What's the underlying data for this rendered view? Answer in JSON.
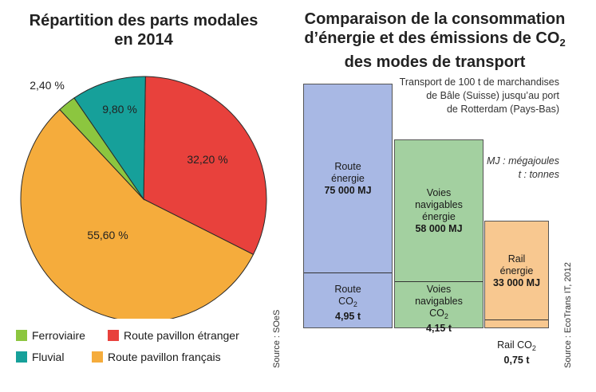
{
  "chart_data": [
    {
      "type": "pie",
      "title_line1": "Répartition des parts modales",
      "title_line2": "en 2014",
      "slices": [
        {
          "name": "Route pavillon étranger",
          "value": 32.2,
          "label": "32,20 %",
          "color": "#e8413c"
        },
        {
          "name": "Route pavillon français",
          "value": 55.6,
          "label": "55,60 %",
          "color": "#f5ac3c"
        },
        {
          "name": "Ferroviaire",
          "value": 2.4,
          "label": "2,40 %",
          "color": "#8cc63f"
        },
        {
          "name": "Fluvial",
          "value": 9.8,
          "label": "9,80 %",
          "color": "#16a09a"
        }
      ],
      "legend": [
        {
          "name": "Ferroviaire",
          "color": "#8cc63f"
        },
        {
          "name": "Route pavillon étranger",
          "color": "#e8413c"
        },
        {
          "name": "Fluvial",
          "color": "#16a09a"
        },
        {
          "name": "Route pavillon français",
          "color": "#f5ac3c"
        }
      ],
      "source": "Source : SOeS"
    },
    {
      "type": "bar",
      "title_line1": "Comparaison de la consommation",
      "title_line2_pre": "d’énergie et des émissions de CO",
      "title_line2_sub": "2",
      "title_line3": "des modes de transport",
      "subtitle_lines": [
        "Transport de 100 t de marchandises",
        "de Bâle (Suisse) jusqu’au port",
        "de Rotterdam (Pays-Bas)"
      ],
      "units_lines": [
        "MJ : mégajoules",
        "t : tonnes"
      ],
      "categories": [
        "Route",
        "Voies navigables",
        "Rail"
      ],
      "series": [
        {
          "name": "énergie",
          "unit": "MJ",
          "values": [
            75000,
            58000,
            33000
          ]
        },
        {
          "name": "CO2",
          "unit": "t",
          "values": [
            4.95,
            4.15,
            0.75
          ]
        }
      ],
      "bars": [
        {
          "color": "#a8b8e4",
          "energy_lines": [
            "Route",
            "énergie"
          ],
          "energy_value": "75 000 MJ",
          "co2_lines": [
            "Route"
          ],
          "co2_label": "CO",
          "co2_sub": "2",
          "co2_value": "4,95 t"
        },
        {
          "color": "#a3d0a0",
          "energy_lines": [
            "Voies",
            "navigables",
            "énergie"
          ],
          "energy_value": "58 000 MJ",
          "co2_lines": [
            "Voies",
            "navigables"
          ],
          "co2_label": "CO",
          "co2_sub": "2",
          "co2_value": "4,15 t"
        },
        {
          "color": "#f8c890",
          "energy_lines": [
            "Rail",
            "énergie"
          ],
          "energy_value": "33 000 MJ",
          "co2_lines": [],
          "co2_label": "Rail CO",
          "co2_sub": "2",
          "co2_value": "0,75 t"
        }
      ],
      "source": "Source : EcoTrans IT, 2012"
    }
  ]
}
